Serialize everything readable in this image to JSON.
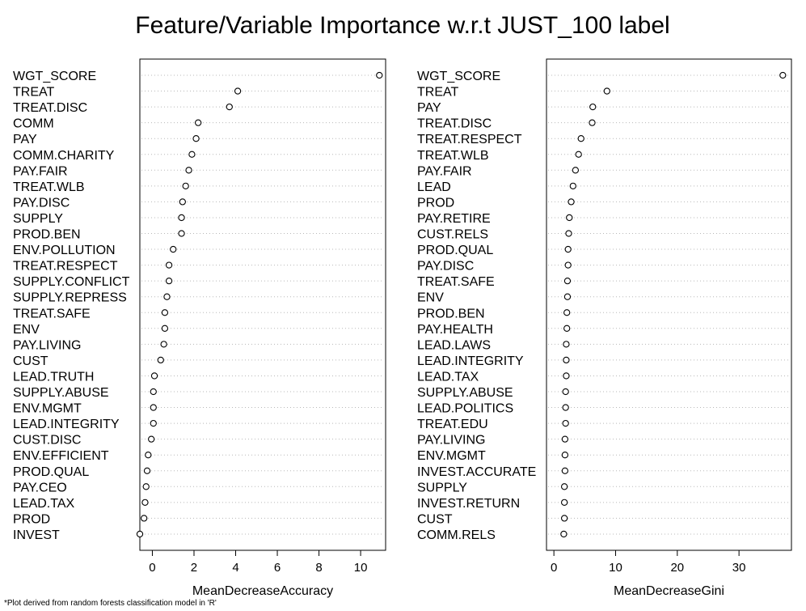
{
  "title": "Feature/Variable Importance w.r.t JUST_100 label",
  "footnote": "*Plot derived from random forests classification model in 'R'",
  "chart_data": [
    {
      "type": "scatter",
      "style": "dot-chart",
      "xlabel": "MeanDecreaseAccuracy",
      "ylabel": "",
      "xlim": [
        -0.6,
        11.2
      ],
      "xticks": [
        0,
        2,
        4,
        6,
        8,
        10
      ],
      "grid": "dotted-horizontal",
      "categories": [
        "WGT_SCORE",
        "TREAT",
        "TREAT.DISC",
        "COMM",
        "PAY",
        "COMM.CHARITY",
        "PAY.FAIR",
        "TREAT.WLB",
        "PAY.DISC",
        "SUPPLY",
        "PROD.BEN",
        "ENV.POLLUTION",
        "TREAT.RESPECT",
        "SUPPLY.CONFLICT",
        "SUPPLY.REPRESS",
        "TREAT.SAFE",
        "ENV",
        "PAY.LIVING",
        "CUST",
        "LEAD.TRUTH",
        "SUPPLY.ABUSE",
        "ENV.MGMT",
        "LEAD.INTEGRITY",
        "CUST.DISC",
        "ENV.EFFICIENT",
        "PROD.QUAL",
        "PAY.CEO",
        "LEAD.TAX",
        "PROD",
        "INVEST"
      ],
      "values": [
        10.9,
        4.1,
        3.7,
        2.2,
        2.1,
        1.9,
        1.75,
        1.6,
        1.45,
        1.4,
        1.4,
        1.0,
        0.8,
        0.8,
        0.7,
        0.6,
        0.6,
        0.55,
        0.4,
        0.1,
        0.05,
        0.05,
        0.05,
        -0.05,
        -0.2,
        -0.25,
        -0.3,
        -0.35,
        -0.4,
        -0.6
      ]
    },
    {
      "type": "scatter",
      "style": "dot-chart",
      "xlabel": "MeanDecreaseGini",
      "ylabel": "",
      "xlim": [
        -1.2,
        38.5
      ],
      "xticks": [
        0,
        10,
        20,
        30
      ],
      "grid": "dotted-horizontal",
      "categories": [
        "WGT_SCORE",
        "TREAT",
        "PAY",
        "TREAT.DISC",
        "TREAT.RESPECT",
        "TREAT.WLB",
        "PAY.FAIR",
        "LEAD",
        "PROD",
        "PAY.RETIRE",
        "CUST.RELS",
        "PROD.QUAL",
        "PAY.DISC",
        "TREAT.SAFE",
        "ENV",
        "PROD.BEN",
        "PAY.HEALTH",
        "LEAD.LAWS",
        "LEAD.INTEGRITY",
        "LEAD.TAX",
        "SUPPLY.ABUSE",
        "LEAD.POLITICS",
        "TREAT.EDU",
        "PAY.LIVING",
        "ENV.MGMT",
        "INVEST.ACCURATE",
        "SUPPLY",
        "INVEST.RETURN",
        "CUST",
        "COMM.RELS"
      ],
      "values": [
        37.1,
        8.6,
        6.3,
        6.2,
        4.4,
        4.0,
        3.5,
        3.1,
        2.8,
        2.5,
        2.4,
        2.3,
        2.3,
        2.2,
        2.2,
        2.1,
        2.1,
        2.0,
        2.0,
        2.0,
        1.9,
        1.9,
        1.9,
        1.8,
        1.8,
        1.8,
        1.7,
        1.7,
        1.7,
        1.6
      ]
    }
  ]
}
